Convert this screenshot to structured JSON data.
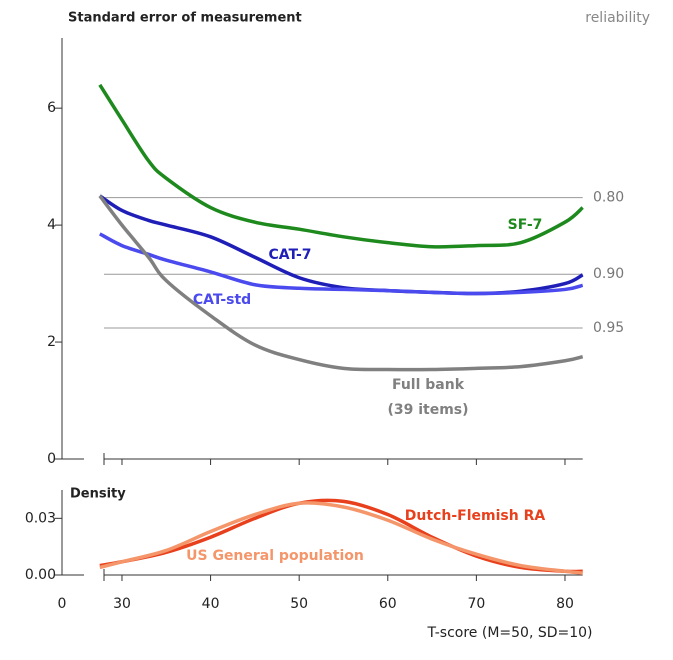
{
  "chart_data": [
    {
      "type": "line",
      "title": "Standard error of measurement",
      "y2_title": "reliability",
      "x": [
        27.5,
        30,
        33,
        35,
        40,
        45,
        50,
        55,
        60,
        65,
        70,
        75,
        80,
        82
      ],
      "xlim": [
        27,
        82
      ],
      "ylim": [
        0,
        7.2
      ],
      "yticks": [
        0,
        2,
        4,
        6
      ],
      "reference_lines": [
        {
          "value": 4.47,
          "label": "0.80"
        },
        {
          "value": 3.16,
          "label": "0.90"
        },
        {
          "value": 2.24,
          "label": "0.95"
        }
      ],
      "series": [
        {
          "name": "SF-7",
          "color": "#1e8a1e",
          "values": [
            6.4,
            5.8,
            5.1,
            4.8,
            4.3,
            4.05,
            3.93,
            3.8,
            3.7,
            3.63,
            3.65,
            3.7,
            4.05,
            4.3
          ]
        },
        {
          "name": "CAT-7",
          "color": "#1f1fb8",
          "values": [
            4.5,
            4.25,
            4.08,
            4.0,
            3.8,
            3.45,
            3.1,
            2.93,
            2.88,
            2.85,
            2.83,
            2.87,
            3.0,
            3.15
          ]
        },
        {
          "name": "CAT-std",
          "color": "#4a4aee",
          "values": [
            3.85,
            3.65,
            3.5,
            3.4,
            3.2,
            2.98,
            2.92,
            2.9,
            2.88,
            2.85,
            2.83,
            2.85,
            2.9,
            2.97
          ]
        },
        {
          "name": "Full bank",
          "note": "(39 items)",
          "color": "#808080",
          "values": [
            4.5,
            4.0,
            3.45,
            3.05,
            2.45,
            1.95,
            1.7,
            1.55,
            1.53,
            1.53,
            1.55,
            1.58,
            1.68,
            1.75
          ]
        }
      ]
    },
    {
      "type": "line",
      "title": "Density",
      "x_label": "T-score (M=50, SD=10)",
      "x_origin_label": "0",
      "x": [
        27.5,
        30,
        35,
        40,
        45,
        50,
        55,
        60,
        65,
        70,
        75,
        80,
        82
      ],
      "xlim": [
        27,
        82
      ],
      "xticks": [
        30,
        40,
        50,
        60,
        70,
        80
      ],
      "ylim": [
        0,
        0.045
      ],
      "yticks": [
        {
          "value": 0,
          "label": "0.00"
        },
        {
          "value": 0.03,
          "label": "0.03"
        }
      ],
      "series": [
        {
          "name": "Dutch-Flemish RA",
          "color": "#e8401c",
          "values": [
            0.005,
            0.007,
            0.012,
            0.02,
            0.03,
            0.038,
            0.039,
            0.032,
            0.02,
            0.01,
            0.004,
            0.002,
            0.002
          ]
        },
        {
          "name": "US General population",
          "color": "#f4956a",
          "values": [
            0.004,
            0.007,
            0.013,
            0.023,
            0.032,
            0.038,
            0.036,
            0.029,
            0.019,
            0.011,
            0.005,
            0.002,
            0.001
          ]
        }
      ]
    }
  ]
}
